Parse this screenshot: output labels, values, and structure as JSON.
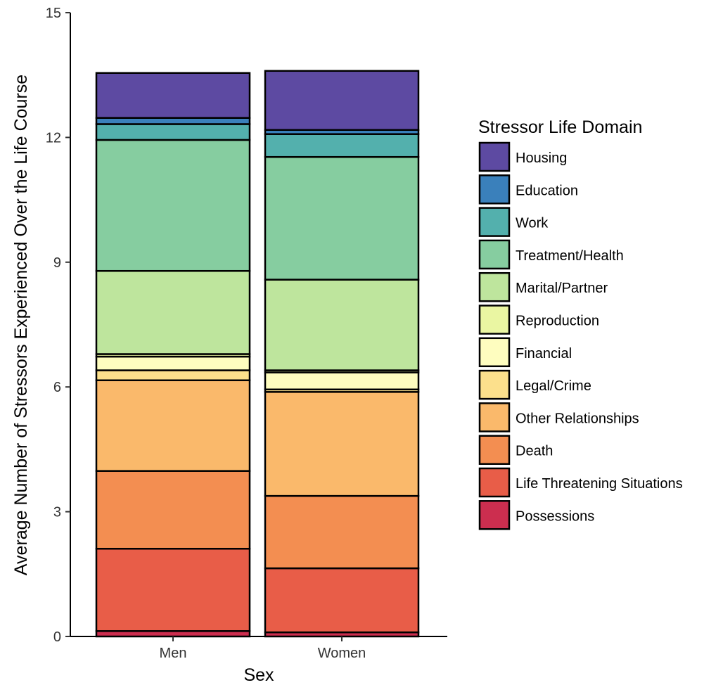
{
  "chart_data": {
    "type": "bar",
    "stacked": true,
    "title": "",
    "xlabel": "Sex",
    "ylabel": "Average Number of Stressors Experienced Over the Life Course",
    "ylim": [
      0,
      15
    ],
    "yticks": [
      "0",
      "3",
      "6",
      "9",
      "12",
      "15"
    ],
    "categories": [
      "Men",
      "Women"
    ],
    "legend_title": "Stressor Life Domain",
    "legend_position": "right",
    "grid": false,
    "series": [
      {
        "name": "Possessions",
        "color": "#cc2e4f",
        "values": [
          0.13,
          0.1
        ]
      },
      {
        "name": "Life Threatening Situations",
        "color": "#e85d48",
        "values": [
          1.98,
          1.54
        ]
      },
      {
        "name": "Death",
        "color": "#f38e51",
        "values": [
          1.87,
          1.74
        ]
      },
      {
        "name": "Other Relationships",
        "color": "#fab96b",
        "values": [
          2.18,
          2.5
        ]
      },
      {
        "name": "Legal/Crime",
        "color": "#fce08c",
        "values": [
          0.24,
          0.06
        ]
      },
      {
        "name": "Financial",
        "color": "#fefdbf",
        "values": [
          0.33,
          0.41
        ]
      },
      {
        "name": "Reproduction",
        "color": "#eaf6a2",
        "values": [
          0.06,
          0.05
        ]
      },
      {
        "name": "Marital/Partner",
        "color": "#bee59d",
        "values": [
          2.0,
          2.18
        ]
      },
      {
        "name": "Treatment/Health",
        "color": "#86cda0",
        "values": [
          3.15,
          2.95
        ]
      },
      {
        "name": "Work",
        "color": "#53b0ad",
        "values": [
          0.38,
          0.55
        ]
      },
      {
        "name": "Education",
        "color": "#3a80bb",
        "values": [
          0.15,
          0.1
        ]
      },
      {
        "name": "Housing",
        "color": "#5d4aa2",
        "values": [
          1.08,
          1.42
        ]
      }
    ]
  }
}
